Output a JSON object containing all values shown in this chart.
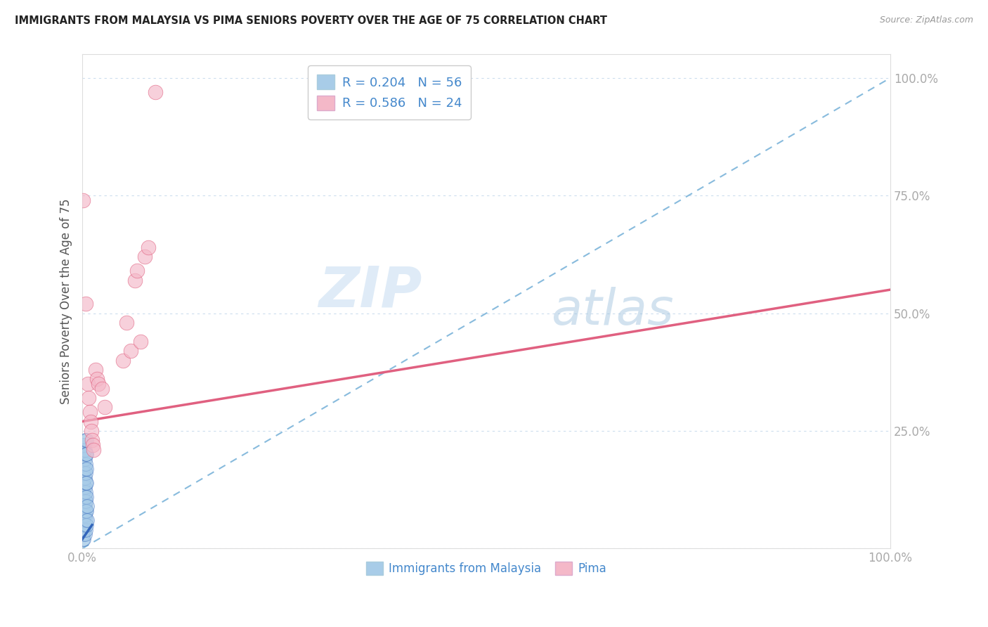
{
  "title": "IMMIGRANTS FROM MALAYSIA VS PIMA SENIORS POVERTY OVER THE AGE OF 75 CORRELATION CHART",
  "source": "Source: ZipAtlas.com",
  "ylabel": "Seniors Poverty Over the Age of 75",
  "r_blue": 0.204,
  "n_blue": 56,
  "r_pink": 0.586,
  "n_pink": 24,
  "legend_label_blue": "Immigrants from Malaysia",
  "legend_label_pink": "Pima",
  "blue_color": "#a8cce8",
  "pink_color": "#f4b8c8",
  "blue_line_color": "#3366bb",
  "pink_line_color": "#e06080",
  "dashed_line_color": "#88bbdd",
  "watermark_zip": "ZIP",
  "watermark_atlas": "atlas",
  "blue_points": [
    [
      0.001,
      0.02
    ],
    [
      0.001,
      0.03
    ],
    [
      0.001,
      0.04
    ],
    [
      0.001,
      0.05
    ],
    [
      0.001,
      0.06
    ],
    [
      0.001,
      0.07
    ],
    [
      0.001,
      0.08
    ],
    [
      0.001,
      0.09
    ],
    [
      0.001,
      0.1
    ],
    [
      0.001,
      0.11
    ],
    [
      0.001,
      0.12
    ],
    [
      0.001,
      0.13
    ],
    [
      0.001,
      0.14
    ],
    [
      0.001,
      0.15
    ],
    [
      0.001,
      0.16
    ],
    [
      0.001,
      0.17
    ],
    [
      0.002,
      0.02
    ],
    [
      0.002,
      0.04
    ],
    [
      0.002,
      0.06
    ],
    [
      0.002,
      0.08
    ],
    [
      0.002,
      0.1
    ],
    [
      0.002,
      0.12
    ],
    [
      0.002,
      0.14
    ],
    [
      0.002,
      0.16
    ],
    [
      0.002,
      0.18
    ],
    [
      0.002,
      0.2
    ],
    [
      0.002,
      0.22
    ],
    [
      0.003,
      0.03
    ],
    [
      0.003,
      0.05
    ],
    [
      0.003,
      0.07
    ],
    [
      0.003,
      0.09
    ],
    [
      0.003,
      0.11
    ],
    [
      0.003,
      0.13
    ],
    [
      0.003,
      0.15
    ],
    [
      0.003,
      0.17
    ],
    [
      0.003,
      0.19
    ],
    [
      0.003,
      0.21
    ],
    [
      0.003,
      0.23
    ],
    [
      0.004,
      0.04
    ],
    [
      0.004,
      0.06
    ],
    [
      0.004,
      0.08
    ],
    [
      0.004,
      0.1
    ],
    [
      0.004,
      0.12
    ],
    [
      0.004,
      0.14
    ],
    [
      0.004,
      0.16
    ],
    [
      0.004,
      0.18
    ],
    [
      0.004,
      0.2
    ],
    [
      0.005,
      0.05
    ],
    [
      0.005,
      0.08
    ],
    [
      0.005,
      0.11
    ],
    [
      0.005,
      0.14
    ],
    [
      0.005,
      0.17
    ],
    [
      0.005,
      0.2
    ],
    [
      0.005,
      0.23
    ],
    [
      0.006,
      0.06
    ],
    [
      0.006,
      0.09
    ]
  ],
  "pink_points": [
    [
      0.001,
      0.74
    ],
    [
      0.004,
      0.52
    ],
    [
      0.007,
      0.35
    ],
    [
      0.008,
      0.32
    ],
    [
      0.009,
      0.29
    ],
    [
      0.01,
      0.27
    ],
    [
      0.011,
      0.25
    ],
    [
      0.012,
      0.23
    ],
    [
      0.013,
      0.22
    ],
    [
      0.014,
      0.21
    ],
    [
      0.016,
      0.38
    ],
    [
      0.018,
      0.36
    ],
    [
      0.02,
      0.35
    ],
    [
      0.024,
      0.34
    ],
    [
      0.028,
      0.3
    ],
    [
      0.05,
      0.4
    ],
    [
      0.055,
      0.48
    ],
    [
      0.06,
      0.42
    ],
    [
      0.065,
      0.57
    ],
    [
      0.068,
      0.59
    ],
    [
      0.072,
      0.44
    ],
    [
      0.077,
      0.62
    ],
    [
      0.082,
      0.64
    ],
    [
      0.09,
      0.97
    ]
  ],
  "xlim": [
    0.0,
    1.0
  ],
  "ylim": [
    0.0,
    1.05
  ],
  "ytick_vals": [
    0.0,
    0.25,
    0.5,
    0.75,
    1.0
  ],
  "ytick_labels": [
    "",
    "25.0%",
    "50.0%",
    "75.0%",
    "100.0%"
  ],
  "xtick_vals": [
    0.0,
    0.25,
    0.5,
    0.75,
    1.0
  ],
  "xtick_labels": [
    "0.0%",
    "",
    "",
    "",
    "100.0%"
  ],
  "background_color": "#ffffff",
  "grid_color": "#ccddee",
  "title_color": "#222222",
  "axis_label_color": "#4488cc",
  "pink_line_intercept": 0.27,
  "pink_line_slope": 0.28,
  "blue_line_intercept": 0.02,
  "blue_line_slope": 2.5,
  "dashed_line_intercept": 0.0,
  "dashed_line_slope": 1.0
}
